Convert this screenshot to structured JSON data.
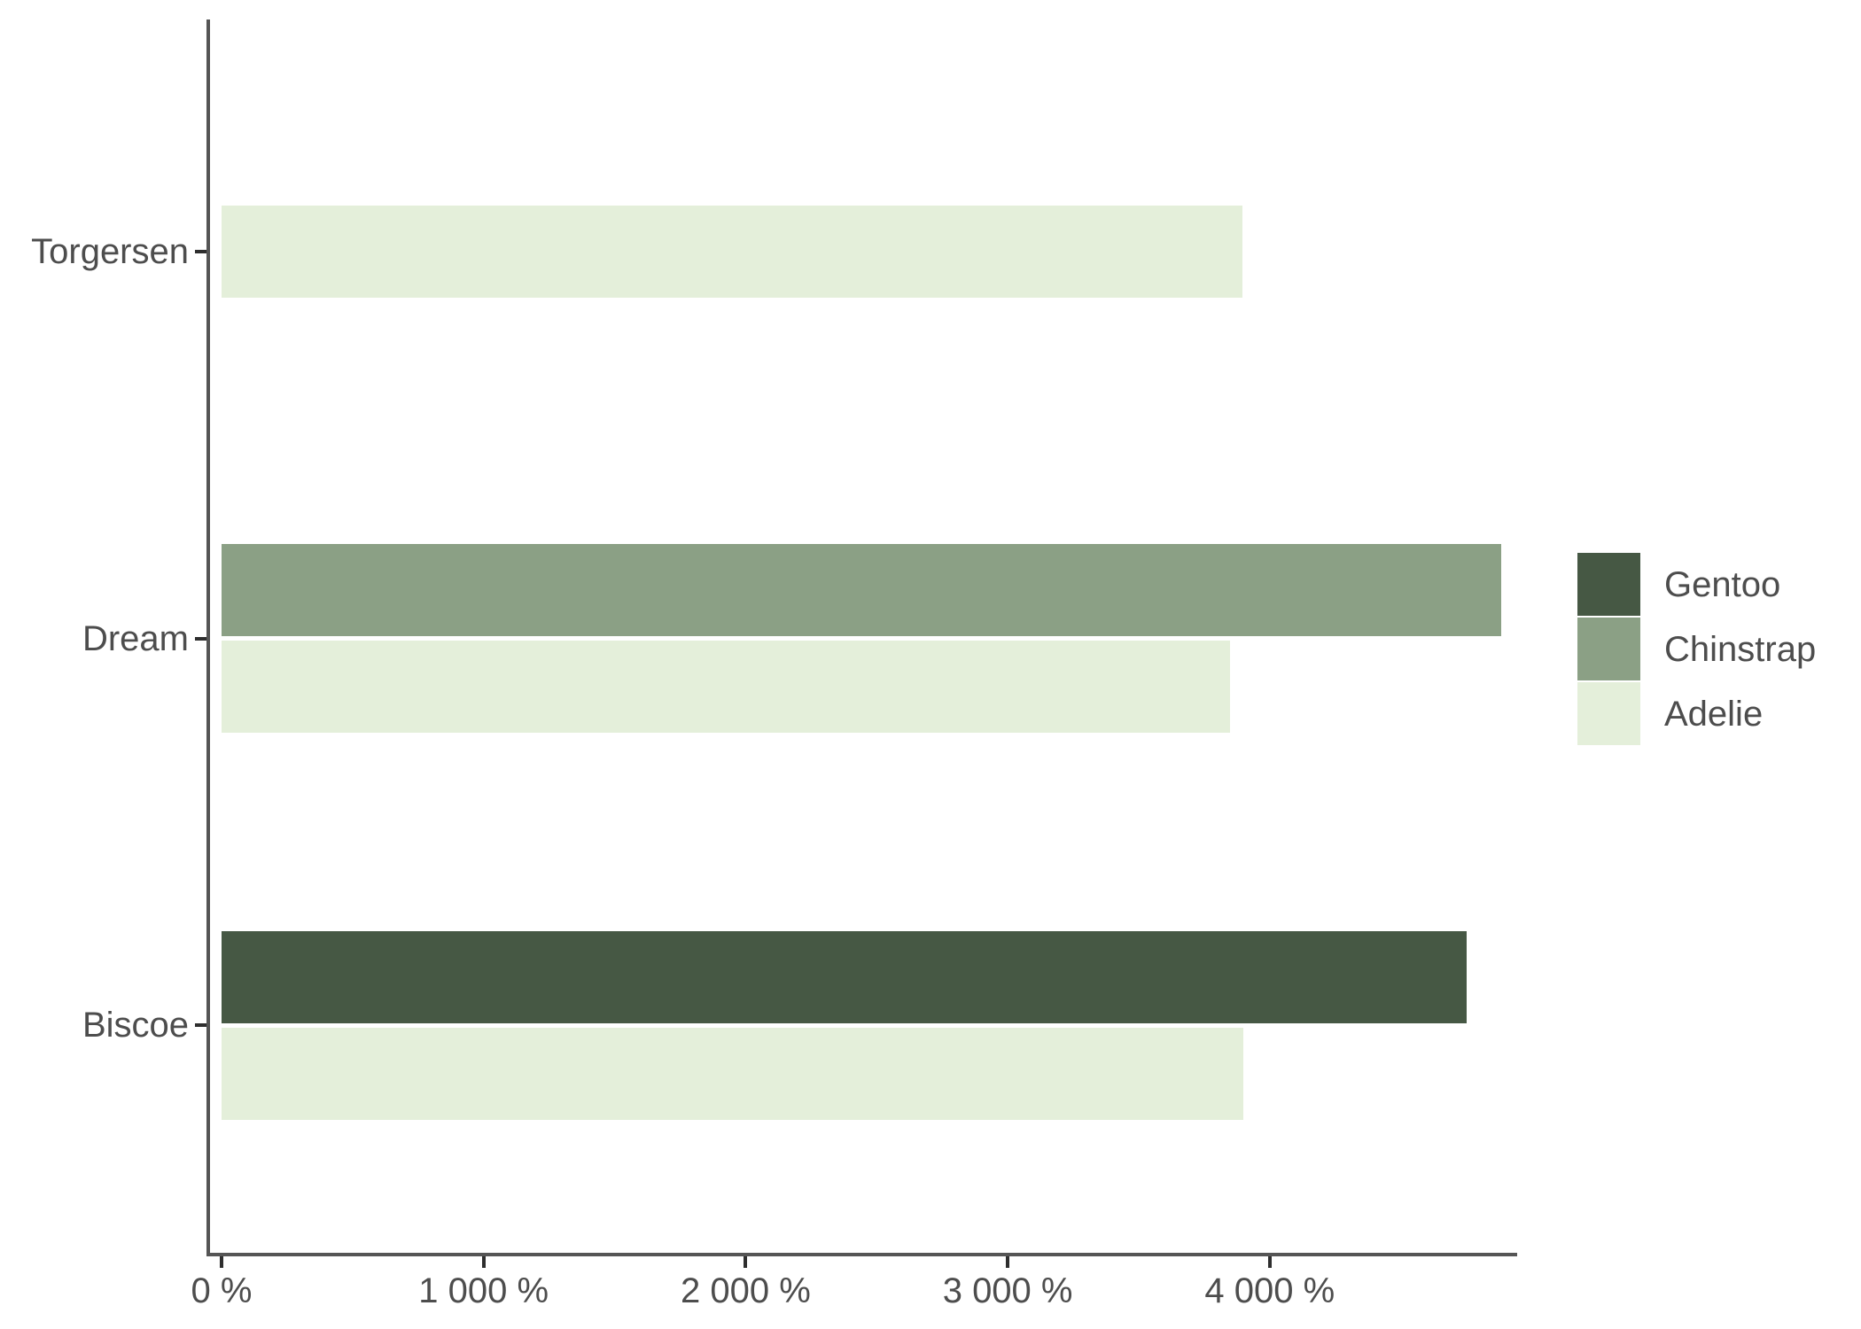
{
  "chart_data": {
    "type": "bar",
    "orientation": "horizontal",
    "title": "",
    "xlabel": "",
    "ylabel": "",
    "categories": [
      "Torgersen",
      "Dream",
      "Biscoe"
    ],
    "series": [
      {
        "name": "Gentoo",
        "color": "#465844",
        "values": [
          null,
          null,
          4750
        ]
      },
      {
        "name": "Chinstrap",
        "color": "#8BA085",
        "values": [
          null,
          4883,
          null
        ]
      },
      {
        "name": "Adelie",
        "color": "#E4EFDA",
        "values": [
          3895,
          3850,
          3898
        ]
      }
    ],
    "x_axis": {
      "tick_values": [
        0,
        1000,
        2000,
        3000,
        4000
      ],
      "tick_labels": [
        "0 %",
        "1 000 %",
        "2 000 %",
        "3 000 %",
        "4 000 %"
      ],
      "xlim": [
        0,
        4950
      ],
      "unit": "percent"
    },
    "grid": "off",
    "legend": {
      "position": "right",
      "entries": [
        "Gentoo",
        "Chinstrap",
        "Adelie"
      ]
    }
  },
  "colors": {
    "background": "#ffffff",
    "axis_line": "#555555",
    "tick_mark": "#2e2e2e",
    "text": "#4d4d4d"
  }
}
